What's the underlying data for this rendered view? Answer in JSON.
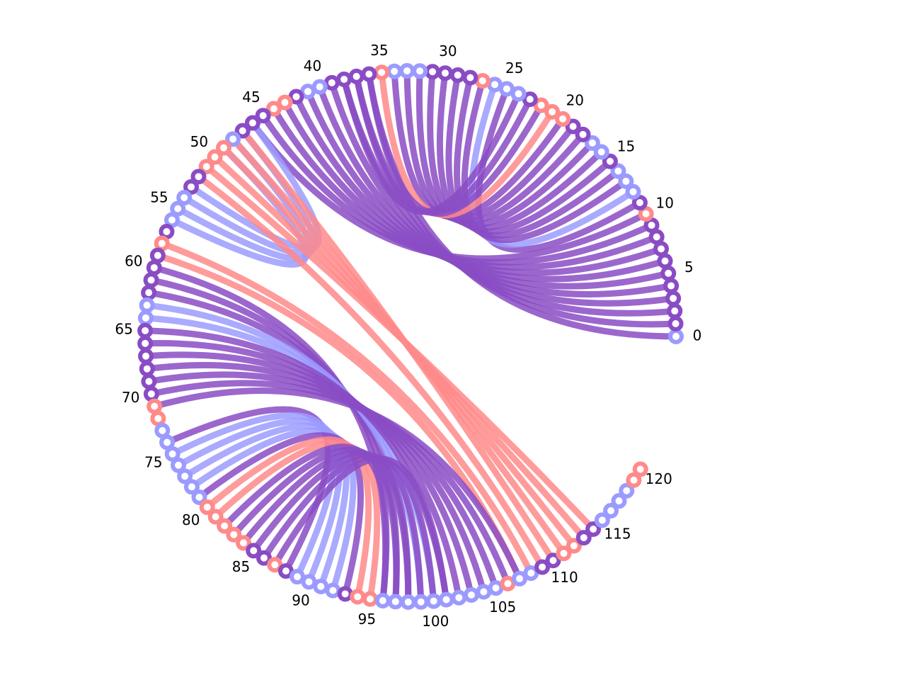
{
  "colors": {
    "red": "#ff8a8a",
    "blue": "#9b9bff",
    "purple": "#8a4cc4",
    "background": "#ffffff",
    "label": "#000000"
  },
  "diagram": {
    "type": "circular-arc-diagram",
    "node_count": 121,
    "node_start": 0,
    "node_end": 120,
    "tick_step": 5,
    "tick_labels": [
      "0",
      "5",
      "10",
      "15",
      "20",
      "25",
      "30",
      "35",
      "40",
      "45",
      "50",
      "55",
      "60",
      "65",
      "70",
      "75",
      "80",
      "85",
      "90",
      "95",
      "100",
      "105",
      "110",
      "115",
      "120"
    ],
    "node_colors": {
      "red": [
        10,
        20,
        21,
        22,
        27,
        35,
        43,
        44,
        49,
        50,
        51,
        58,
        71,
        72,
        80,
        81,
        82,
        83,
        84,
        87,
        94,
        95,
        106,
        111,
        112,
        119,
        120
      ],
      "blue": [
        0,
        12,
        13,
        14,
        16,
        17,
        24,
        25,
        26,
        32,
        33,
        34,
        40,
        41,
        48,
        54,
        55,
        56,
        63,
        64,
        73,
        74,
        75,
        76,
        77,
        78,
        79,
        89,
        90,
        91,
        92,
        96,
        97,
        98,
        99,
        100,
        101,
        102,
        103,
        104,
        105,
        107,
        108,
        115,
        116,
        117,
        118
      ]
    },
    "link_groups": [
      {
        "name": "to-upper-hub",
        "color": "mixed",
        "sources": [
          0,
          1,
          2,
          3,
          4,
          5,
          6,
          7,
          8,
          9,
          10
        ],
        "targets": [
          36,
          37,
          38,
          39,
          40,
          41,
          42,
          43,
          44,
          45,
          46
        ]
      },
      {
        "name": "upper-fan",
        "color": "mixed",
        "sources": [
          11,
          12,
          13,
          14,
          15,
          16,
          17,
          18,
          19,
          20,
          21,
          22,
          23,
          24
        ],
        "targets": [
          25,
          26,
          27,
          28,
          29,
          30,
          31,
          32,
          33,
          34,
          35,
          36,
          37,
          38
        ]
      },
      {
        "name": "left-loop",
        "color": "blue",
        "sources": [
          46,
          47,
          48,
          49
        ],
        "targets": [
          53,
          54,
          55,
          56
        ]
      },
      {
        "name": "diagonal",
        "color": "red",
        "sources": [
          47,
          48,
          49,
          50,
          51,
          52,
          58,
          59
        ],
        "targets": [
          110,
          111,
          112,
          113,
          114,
          109,
          108,
          107
        ]
      },
      {
        "name": "left-to-bottom",
        "color": "mixed",
        "sources": [
          60,
          61,
          62,
          63,
          64,
          65,
          66,
          67,
          68,
          69,
          70,
          71
        ],
        "targets": [
          96,
          97,
          98,
          99,
          100,
          101,
          102,
          103,
          104,
          105,
          106,
          107
        ]
      },
      {
        "name": "lower-fan",
        "color": "mixed",
        "sources": [
          74,
          75,
          76,
          77,
          78,
          79,
          80,
          81,
          82,
          83,
          84,
          85,
          86,
          87
        ],
        "targets": [
          88,
          89,
          90,
          91,
          92,
          93,
          94,
          95,
          96,
          97,
          98,
          99,
          100,
          101
        ]
      }
    ]
  }
}
